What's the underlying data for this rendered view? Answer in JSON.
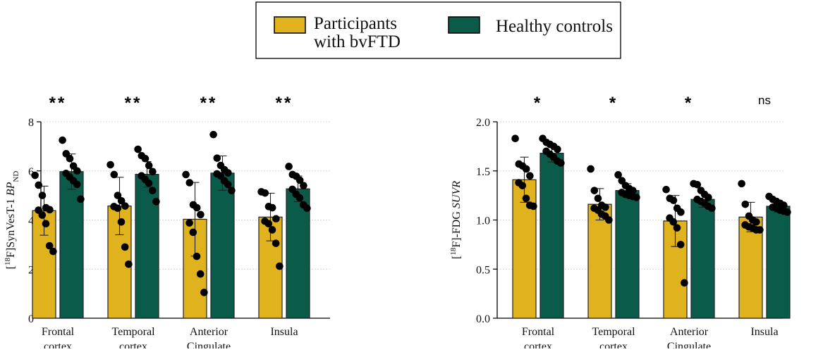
{
  "colors": {
    "patients": "#E0B21E",
    "controls": "#0B5B4A",
    "stroke": "#222222",
    "dot": "#000000",
    "grid": "#d9d9d9"
  },
  "legend": {
    "items": [
      {
        "label_lines": [
          "Participants",
          "with bvFTD"
        ],
        "color": "#E0B21E"
      },
      {
        "label_lines": [
          "Healthy controls"
        ],
        "color": "#0B5B4A"
      }
    ]
  },
  "chart_data": [
    {
      "type": "bar",
      "ylabel_prefix": "[",
      "ylabel_sup": "18",
      "ylabel_mid": "F]SynVesT-1 ",
      "ylabel_italic": "BP",
      "ylabel_sub": "ND",
      "ylim": [
        0,
        8
      ],
      "yticks": [
        "0",
        "2",
        "4",
        "6",
        "8"
      ],
      "ytick_values": [
        0,
        2,
        4,
        6,
        8
      ],
      "grid": true,
      "categories": [
        [
          "Frontal",
          "cortex"
        ],
        [
          "Temporal",
          "cortex"
        ],
        [
          "Anterior",
          "Cingulate"
        ],
        [
          "Insula"
        ]
      ],
      "significance": [
        "**",
        "**",
        "**",
        "**"
      ],
      "series": [
        {
          "name": "Participants with bvFTD",
          "values": [
            4.38,
            4.57,
            4.03,
            4.12
          ],
          "sd": [
            1.0,
            1.17,
            1.5,
            0.97
          ],
          "points": [
            [
              5.82,
              5.42,
              5.0,
              4.5,
              4.42,
              4.4,
              4.2,
              3.85,
              2.95,
              2.72
            ],
            [
              6.25,
              5.85,
              5.0,
              4.78,
              4.57,
              4.55,
              4.48,
              3.92,
              2.9,
              2.2
            ],
            [
              5.85,
              5.52,
              4.62,
              4.5,
              4.22,
              3.88,
              3.5,
              2.52,
              1.8,
              1.05
            ],
            [
              5.15,
              5.1,
              4.55,
              4.5,
              4.05,
              3.95,
              3.85,
              3.6,
              3.05,
              2.12
            ]
          ]
        },
        {
          "name": "Healthy controls",
          "values": [
            5.97,
            5.86,
            5.91,
            5.27
          ],
          "sd": [
            0.72,
            0.52,
            0.7,
            0.52
          ],
          "points": [
            [
              7.25,
              6.7,
              6.5,
              6.2,
              6.0,
              5.9,
              5.75,
              5.6,
              5.45,
              4.85
            ],
            [
              6.88,
              6.62,
              6.5,
              6.22,
              5.97,
              5.8,
              5.65,
              5.5,
              5.2,
              4.75
            ],
            [
              7.48,
              6.52,
              6.22,
              6.05,
              5.92,
              5.88,
              5.8,
              5.6,
              5.45,
              5.2
            ],
            [
              6.18,
              5.85,
              5.78,
              5.62,
              5.4,
              5.25,
              5.05,
              4.9,
              4.62,
              4.48
            ]
          ]
        }
      ]
    },
    {
      "type": "bar",
      "ylabel_prefix": "[",
      "ylabel_sup": "18",
      "ylabel_mid": "F]-FDG ",
      "ylabel_italic": "SUVR",
      "ylabel_sub": "",
      "ylim": [
        0,
        2
      ],
      "yticks": [
        "0.0",
        "0.5",
        "1.0",
        "1.5",
        "2.0"
      ],
      "ytick_values": [
        0,
        0.5,
        1.0,
        1.5,
        2.0
      ],
      "grid": true,
      "categories": [
        [
          "Frontal",
          "cortex"
        ],
        [
          "Temporal",
          "cortex"
        ],
        [
          "Anterior",
          "Cingulate"
        ],
        [
          "Insula"
        ]
      ],
      "significance": [
        "*",
        "*",
        "*",
        "ns"
      ],
      "series": [
        {
          "name": "Participants with bvFTD",
          "values": [
            1.41,
            1.16,
            0.99,
            1.03
          ],
          "sd": [
            0.23,
            0.16,
            0.26,
            0.15
          ],
          "points": [
            [
              1.83,
              1.57,
              1.55,
              1.52,
              1.45,
              1.38,
              1.35,
              1.22,
              1.15,
              1.14
            ],
            [
              1.52,
              1.3,
              1.22,
              1.15,
              1.13,
              1.12,
              1.1,
              1.06,
              1.04,
              1.0
            ],
            [
              1.31,
              1.22,
              1.2,
              1.12,
              1.08,
              1.02,
              0.98,
              0.92,
              0.75,
              0.36
            ],
            [
              1.37,
              1.16,
              1.04,
              1.0,
              0.98,
              0.95,
              0.93,
              0.92,
              0.9,
              0.9
            ]
          ]
        },
        {
          "name": "Healthy controls",
          "values": [
            1.68,
            1.3,
            1.21,
            1.14
          ],
          "sd": [
            0.09,
            0.07,
            0.08,
            0.06
          ],
          "points": [
            [
              1.83,
              1.79,
              1.77,
              1.75,
              1.72,
              1.7,
              1.67,
              1.64,
              1.6,
              1.58
            ],
            [
              1.46,
              1.4,
              1.35,
              1.32,
              1.3,
              1.28,
              1.26,
              1.25,
              1.24,
              1.23
            ],
            [
              1.37,
              1.36,
              1.3,
              1.26,
              1.23,
              1.21,
              1.19,
              1.17,
              1.14,
              1.12
            ],
            [
              1.24,
              1.21,
              1.19,
              1.17,
              1.15,
              1.13,
              1.12,
              1.1,
              1.09,
              1.08
            ]
          ]
        }
      ]
    }
  ]
}
